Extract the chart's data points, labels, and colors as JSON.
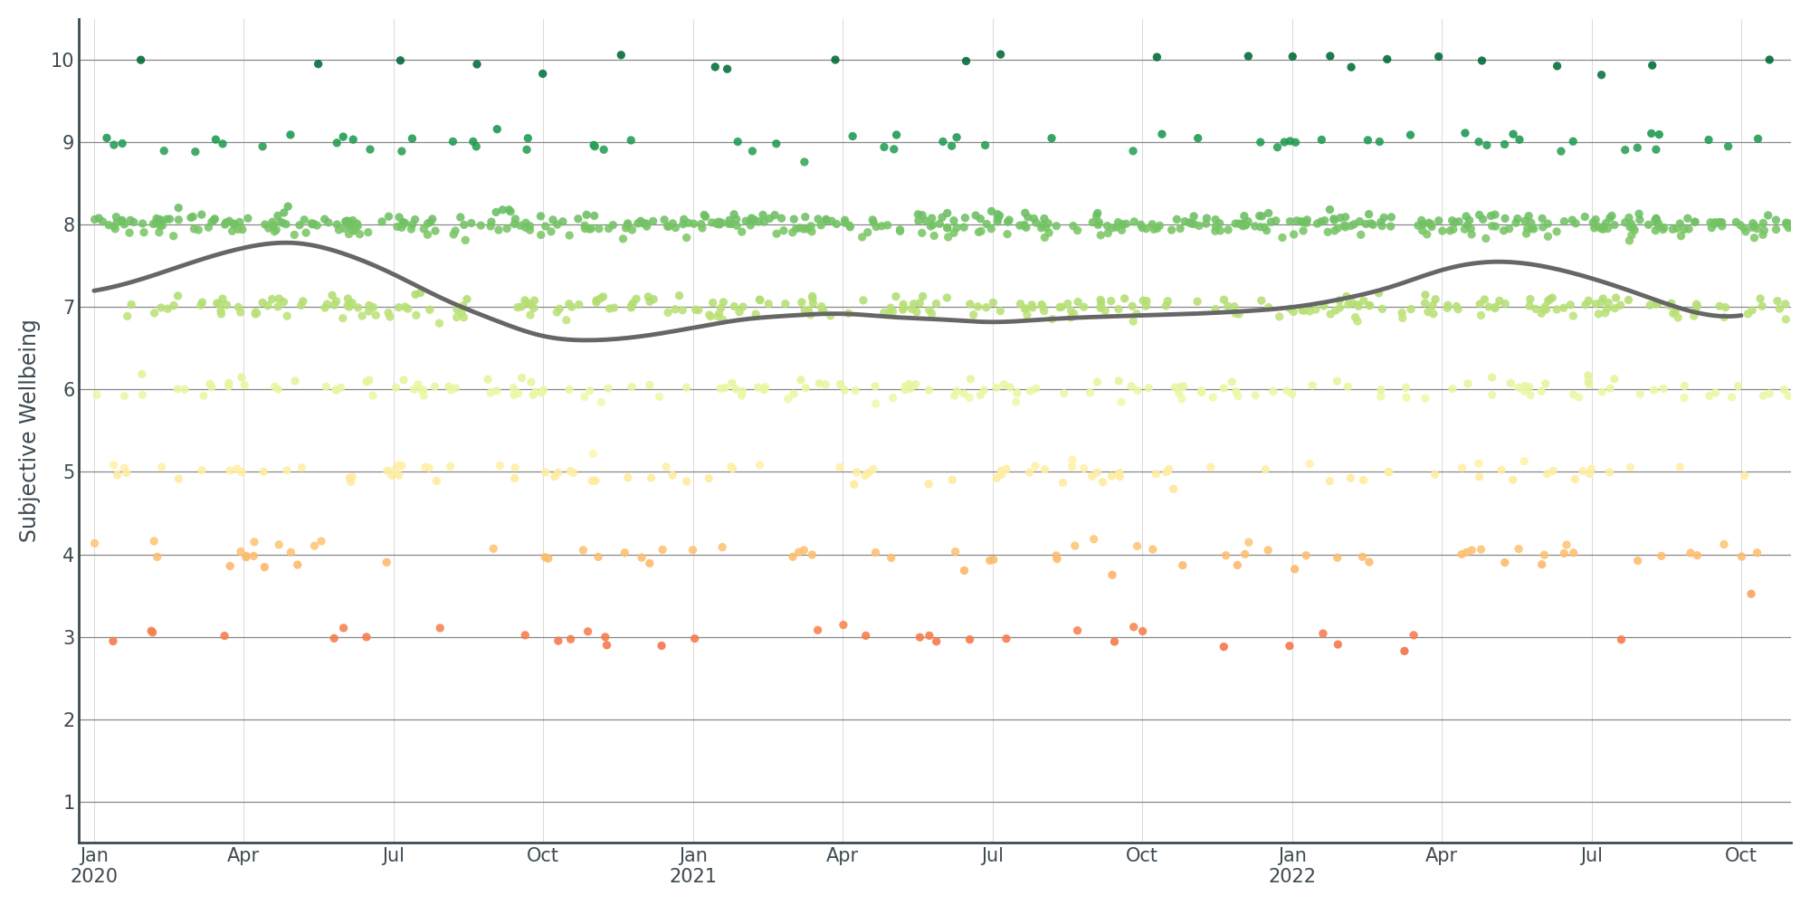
{
  "ylabel": "Subjective Wellbeing",
  "ylim": [
    0.5,
    10.5
  ],
  "yticks": [
    1,
    2,
    3,
    4,
    5,
    6,
    7,
    8,
    9,
    10
  ],
  "bg_color": "#ffffff",
  "grid_color": "#888888",
  "trend_color": "#666666",
  "point_alpha": 0.88,
  "point_size": 45,
  "trend_lw": 3.5,
  "spine_color": "#3d4a52",
  "x_tick_labels": [
    "Jan\n2020",
    "Apr",
    "Jul",
    "Oct",
    "Jan\n2021",
    "Apr",
    "Jul",
    "Oct",
    "Jan\n2022",
    "Apr",
    "Jul",
    "Oct"
  ],
  "x_tick_months": [
    0,
    3,
    6,
    9,
    12,
    15,
    18,
    21,
    24,
    27,
    30,
    33
  ],
  "xlim": [
    -0.3,
    34.0
  ],
  "trend_x": [
    0,
    1,
    2,
    3,
    4,
    5,
    6,
    7,
    8,
    9,
    10,
    11,
    12,
    13,
    14,
    15,
    16,
    17,
    18,
    19,
    20,
    21,
    22,
    23,
    24,
    25,
    26,
    27,
    28,
    29,
    30,
    31,
    32,
    33
  ],
  "trend_y": [
    7.2,
    7.35,
    7.55,
    7.72,
    7.78,
    7.65,
    7.4,
    7.1,
    6.85,
    6.65,
    6.6,
    6.65,
    6.75,
    6.85,
    6.9,
    6.92,
    6.88,
    6.85,
    6.82,
    6.85,
    6.88,
    6.9,
    6.92,
    6.95,
    7.0,
    7.1,
    7.25,
    7.45,
    7.55,
    7.5,
    7.35,
    7.15,
    6.95,
    6.9
  ]
}
